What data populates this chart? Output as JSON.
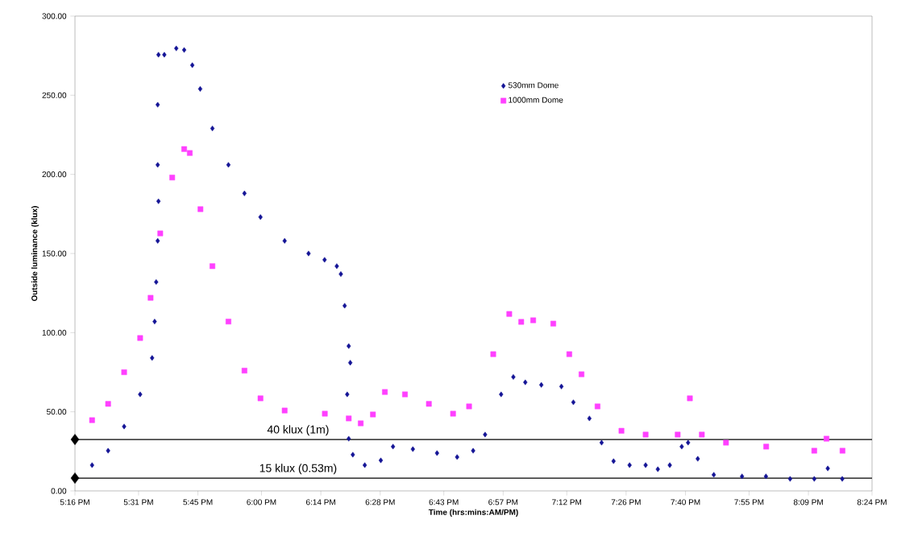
{
  "chart_data": {
    "type": "scatter",
    "xlabel": "Time (hrs:mins:AM/PM)",
    "ylabel": "Outside luminance (klux)",
    "xlim": [
      17.2667,
      20.4
    ],
    "ylim": [
      0,
      300
    ],
    "xticks": [
      {
        "value": 17.2667,
        "label": "5:16 PM"
      },
      {
        "value": 17.5167,
        "label": "5:31 PM"
      },
      {
        "value": 17.75,
        "label": "5:45 PM"
      },
      {
        "value": 18.0,
        "label": "6:00 PM"
      },
      {
        "value": 18.2333,
        "label": "6:14 PM"
      },
      {
        "value": 18.4667,
        "label": "6:28 PM"
      },
      {
        "value": 18.7167,
        "label": "6:43 PM"
      },
      {
        "value": 18.95,
        "label": "6:57 PM"
      },
      {
        "value": 19.2,
        "label": "7:12 PM"
      },
      {
        "value": 19.4333,
        "label": "7:26 PM"
      },
      {
        "value": 19.6667,
        "label": "7:40 PM"
      },
      {
        "value": 19.9167,
        "label": "7:55 PM"
      },
      {
        "value": 20.15,
        "label": "8:09 PM"
      },
      {
        "value": 20.4,
        "label": "8:24 PM"
      }
    ],
    "yticks": [
      {
        "value": 0,
        "label": "0.00"
      },
      {
        "value": 50,
        "label": "50.00"
      },
      {
        "value": 100,
        "label": "100.00"
      },
      {
        "value": 150,
        "label": "150.00"
      },
      {
        "value": 200,
        "label": "200.00"
      },
      {
        "value": 250,
        "label": "250.00"
      },
      {
        "value": 300,
        "label": "300.00"
      }
    ],
    "legend": "top right",
    "grid": false,
    "series": [
      {
        "name": "530mm Dome",
        "color": "#141496",
        "marker": "diamond",
        "x": [
          17.334,
          17.397,
          17.46,
          17.523,
          17.57,
          17.58,
          17.586,
          17.592,
          17.595,
          17.592,
          17.592,
          17.595,
          17.618,
          17.665,
          17.696,
          17.728,
          17.759,
          17.807,
          17.87,
          17.933,
          17.996,
          18.091,
          18.185,
          18.248,
          18.296,
          18.312,
          18.327,
          18.343,
          18.349,
          18.337,
          18.343,
          18.359,
          18.406,
          18.469,
          18.517,
          18.595,
          18.69,
          18.769,
          18.832,
          18.879,
          18.942,
          18.99,
          19.037,
          19.1,
          19.179,
          19.226,
          19.289,
          19.337,
          19.384,
          19.447,
          19.51,
          19.558,
          19.605,
          19.652,
          19.677,
          19.715,
          19.778,
          19.889,
          19.983,
          20.078,
          20.173,
          20.226,
          20.283
        ],
        "values": [
          16.3,
          25.4,
          40.7,
          61,
          84,
          107,
          132,
          158,
          183,
          206,
          244,
          275.6,
          275.6,
          279.6,
          278.6,
          269,
          254,
          229,
          206,
          188,
          173,
          158,
          150,
          146,
          142,
          137,
          117,
          91.5,
          81,
          61,
          33,
          22.9,
          16.3,
          19.3,
          28,
          26.4,
          23.9,
          21.4,
          25.4,
          35.6,
          61,
          72,
          68.6,
          67,
          66,
          56,
          45.8,
          30.5,
          18.8,
          16.3,
          16.3,
          13.7,
          16.3,
          28,
          30.5,
          20.3,
          10.2,
          9.2,
          9.2,
          7.6,
          7.6,
          14.2,
          7.6
        ]
      },
      {
        "name": "1000mm Dome",
        "color": "#ff40ff",
        "marker": "square",
        "x": [
          17.334,
          17.397,
          17.46,
          17.523,
          17.564,
          17.602,
          17.649,
          17.696,
          17.718,
          17.76,
          17.807,
          17.87,
          17.933,
          17.996,
          18.091,
          18.249,
          18.343,
          18.39,
          18.438,
          18.485,
          18.564,
          18.658,
          18.753,
          18.816,
          18.911,
          18.974,
          19.021,
          19.068,
          19.147,
          19.21,
          19.258,
          19.321,
          19.415,
          19.51,
          19.636,
          19.684,
          19.731,
          19.826,
          19.984,
          20.173,
          20.221,
          20.284
        ],
        "values": [
          44.7,
          55,
          75,
          96.6,
          122,
          162.7,
          198,
          216,
          213.5,
          178,
          142,
          107,
          76,
          58.5,
          50.8,
          48.8,
          45.8,
          42.7,
          48.3,
          62.5,
          61,
          55,
          48.8,
          53.4,
          86.4,
          111.8,
          106.8,
          107.8,
          105.7,
          86.4,
          73.7,
          53.4,
          38,
          35.6,
          35.6,
          58.5,
          35.6,
          30.5,
          28,
          25.4,
          33,
          25.4
        ]
      },
      {
        "color": "#000000",
        "marker": "diamond",
        "x": [
          17.2667,
          17.2667
        ],
        "values": [
          32.5,
          8.1
        ]
      }
    ],
    "ref_lines": [
      {
        "axis": "y",
        "value": 32.5,
        "label": "40 klux (1m)",
        "color": "#000000"
      },
      {
        "axis": "y",
        "value": 8.1,
        "label": "15 klux (0.53m)",
        "color": "#000000"
      }
    ]
  }
}
